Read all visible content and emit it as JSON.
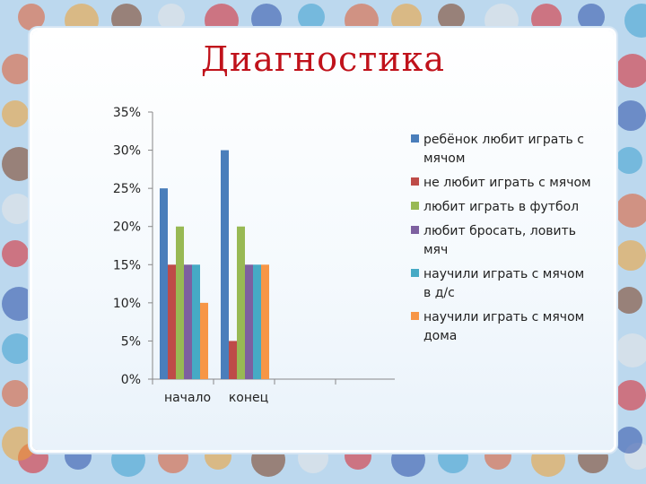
{
  "title": "Диагностика",
  "chart_data": {
    "type": "bar",
    "categories": [
      "начало",
      "конец"
    ],
    "series": [
      {
        "name": "ребёнок любит играть с мячом",
        "color": "#4a7ebb",
        "values": [
          25,
          30
        ]
      },
      {
        "name": "не любит играть с мячом",
        "color": "#be4b48",
        "values": [
          15,
          5
        ]
      },
      {
        "name": "любит играть в футбол",
        "color": "#98b954",
        "values": [
          20,
          20
        ]
      },
      {
        "name": "любит бросать, ловить мяч",
        "color": "#7d60a0",
        "values": [
          15,
          15
        ]
      },
      {
        "name": "научили играть с мячом в д/с",
        "color": "#46aac5",
        "values": [
          15,
          15
        ]
      },
      {
        "name": "научили играть с мячом дома",
        "color": "#f79646",
        "values": [
          10,
          15
        ]
      }
    ],
    "y_ticks": [
      "0%",
      "5%",
      "10%",
      "15%",
      "20%",
      "25%",
      "30%",
      "35%"
    ],
    "ylim": [
      0,
      35
    ],
    "y_unit": "%",
    "grid": false,
    "legend_position": "right"
  }
}
